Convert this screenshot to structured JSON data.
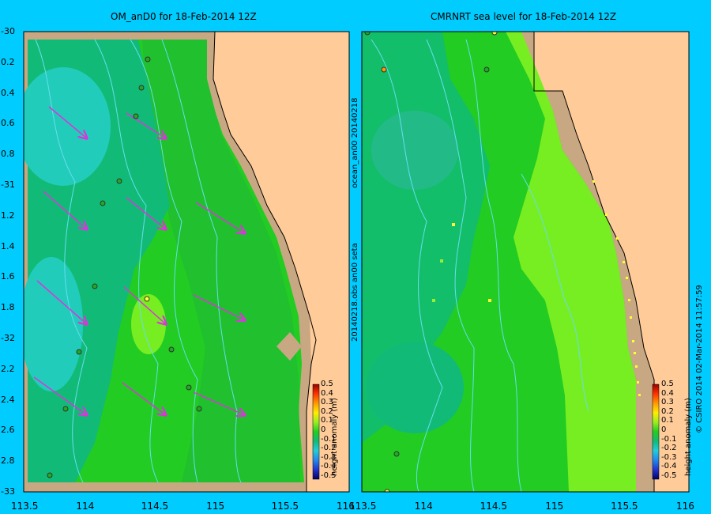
{
  "left_panel": {
    "title": "OM_anD0 for 18-Feb-2014 12Z",
    "y_ticks": [
      "-30",
      "0.2",
      "0.4",
      "0.6",
      "0.8",
      "-31",
      "1.2",
      "1.4",
      "1.6",
      "1.8",
      "-32",
      "2.2",
      "2.4",
      "2.6",
      "2.8",
      "-33"
    ],
    "x_ticks": [
      "113.5",
      "114",
      "114.5",
      "115",
      "115.5",
      "116"
    ]
  },
  "right_panel": {
    "title": "CMRNRT sea level  for 18-Feb-2014 12Z",
    "x_ticks": [
      "113.5",
      "114",
      "114.5",
      "115",
      "115.5",
      "116"
    ],
    "side_label_top": "ocean_an00  20140218",
    "side_label_bottom": "20140218.obs  an00  seta"
  },
  "colorbar": {
    "ticks": [
      "0.5",
      "0.4",
      "0.3",
      "0.2",
      "0.1",
      "0",
      "-0.1",
      "-0.2",
      "-0.3",
      "-0.4",
      "-0.5"
    ],
    "label": "height anomaly (m)"
  },
  "credit": "© CSIRO 2014   02-Mar-2014 11:57:59",
  "colors": {
    "background": "#00ccff",
    "land": "#ffcc99",
    "shelf": "#c8a882",
    "sea_green": "#22cc22",
    "sea_teal": "#11bb77",
    "sea_cyan": "#22ccbb",
    "sea_light": "#77ee22",
    "arrow": "#dd33dd"
  },
  "arrow_glyph": "vector-arrow",
  "marker_glyph": "observation-marker"
}
